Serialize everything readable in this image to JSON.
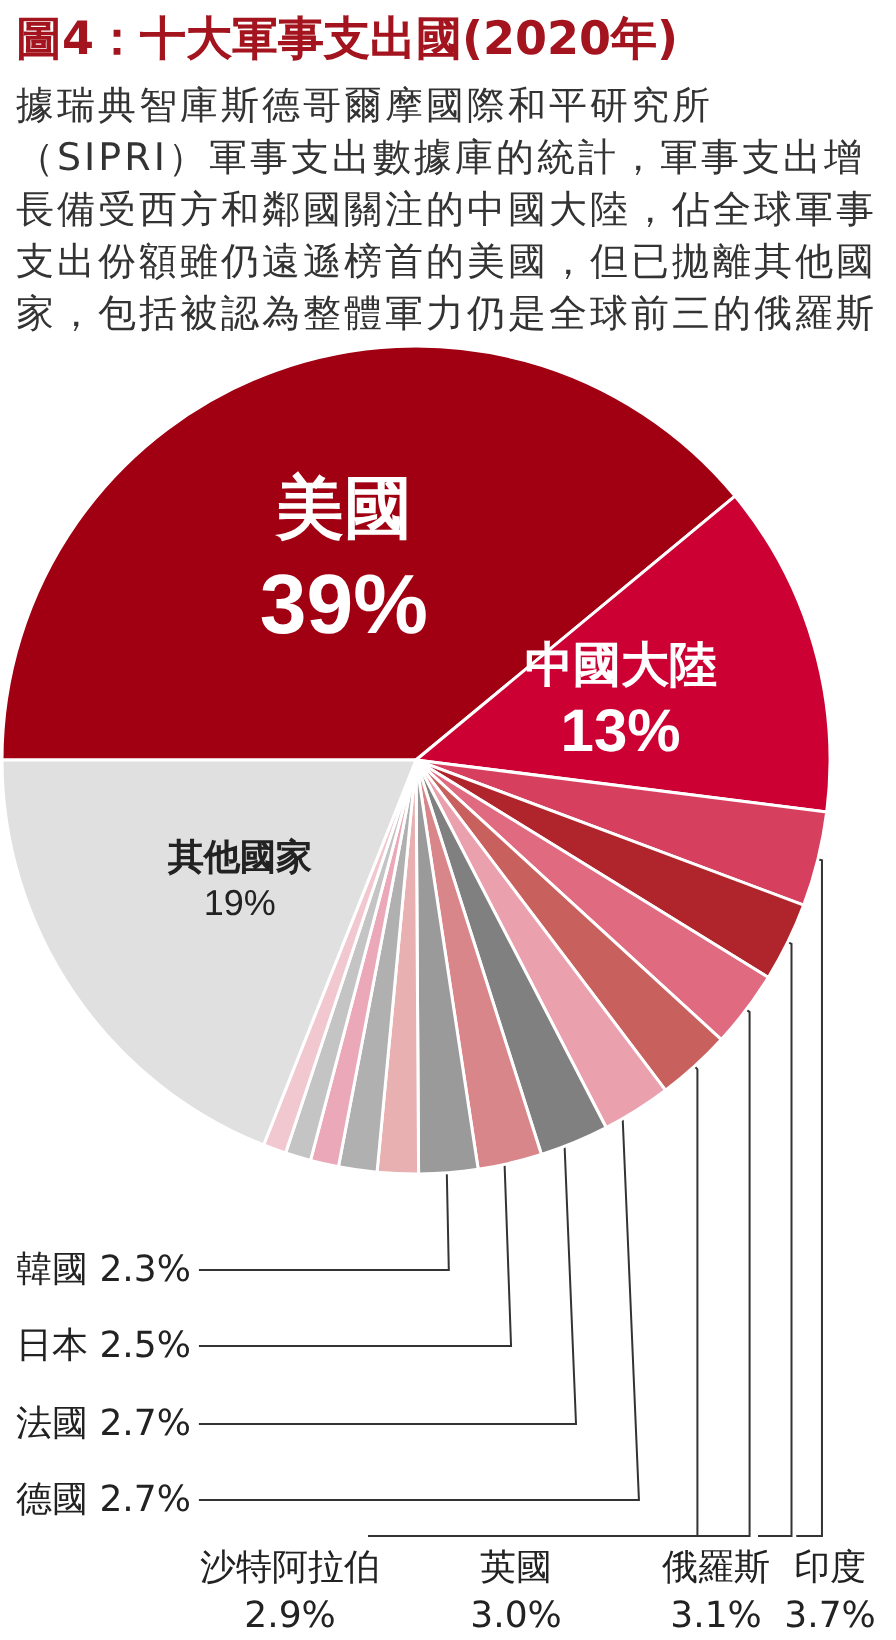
{
  "chart_data": {
    "type": "pie",
    "title": "圖4：十大軍事支出國(2020年)",
    "subtitle": "據瑞典智庫斯德哥爾摩國際和平研究所（SIPRI）軍事支出數據庫的統計，軍事支出增長備受西方和鄰國關注的中國大陸，佔全球軍事支出份額雖仍遠遜榜首的美國，但已拋離其他國家，包括被認為整體軍力仍是全球前三的俄羅斯",
    "categories": [
      "美國",
      "中國大陸",
      "印度",
      "俄羅斯",
      "英國",
      "沙特阿拉伯",
      "德國",
      "法國",
      "日本",
      "韓國",
      null,
      null,
      null,
      null,
      null,
      "其他國家"
    ],
    "values": [
      39,
      13,
      3.7,
      3.1,
      3.0,
      2.9,
      2.7,
      2.7,
      2.5,
      2.3,
      1.6,
      1.5,
      1.1,
      1.0,
      0.9,
      19
    ],
    "colors": [
      "#a00012",
      "#cc0033",
      "#d6405e",
      "#b0252c",
      "#e06a80",
      "#c8605e",
      "#eba0ae",
      "#808080",
      "#d9868a",
      "#9a9a9a",
      "#e8b0b0",
      "#b0b0b0",
      "#eaa8b8",
      "#c4c4c4",
      "#f2c8d0",
      "#e0e0e0"
    ],
    "value_labels": [
      "39%",
      "13%",
      "3.7%",
      "3.1%",
      "3.0%",
      "2.9%",
      "2.7%",
      "2.7%",
      "2.5%",
      "2.3%",
      null,
      null,
      null,
      null,
      null,
      "19%"
    ]
  }
}
